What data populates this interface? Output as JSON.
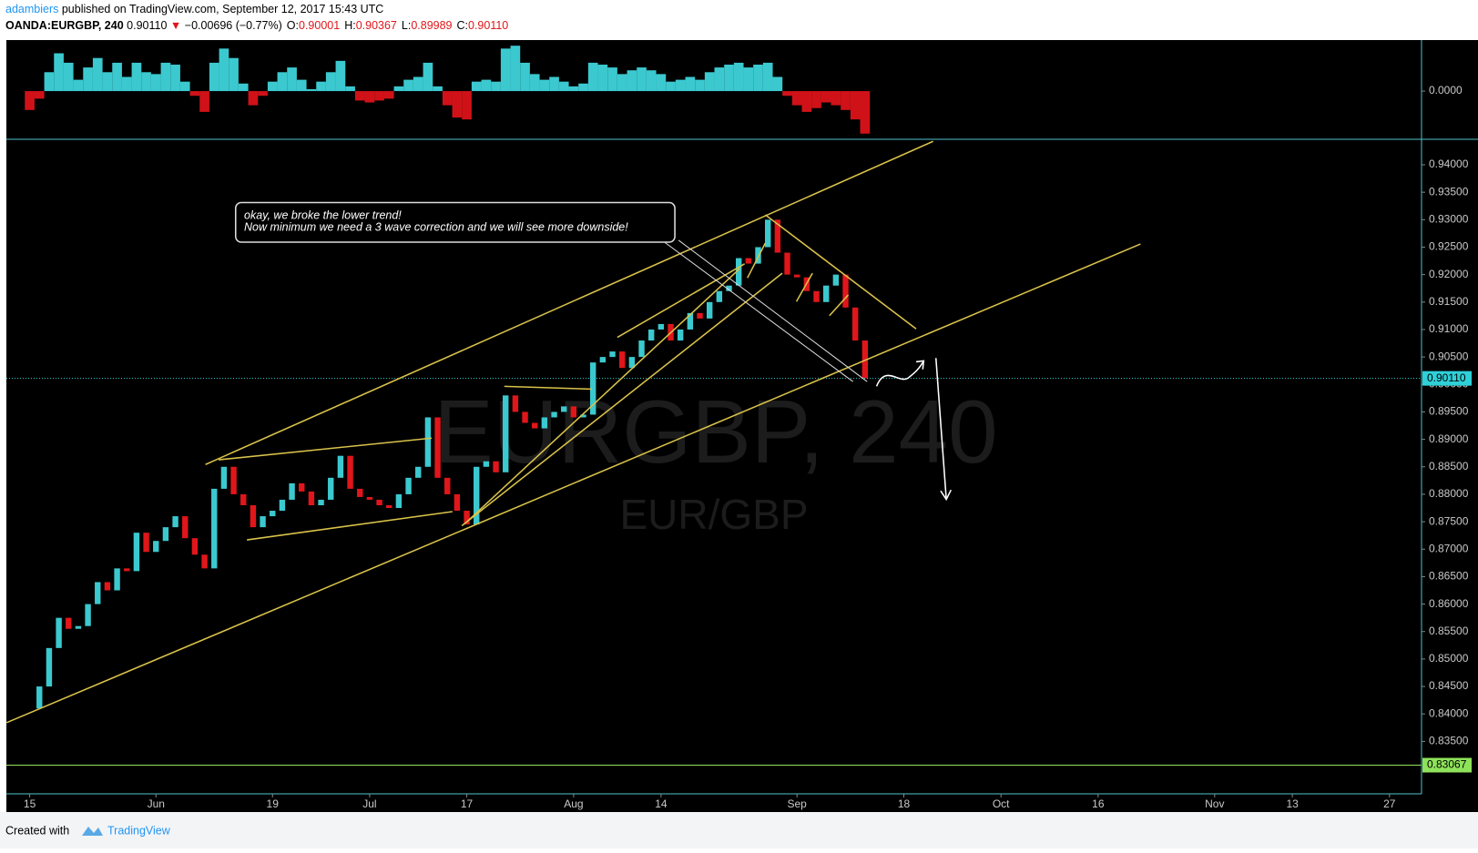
{
  "header": {
    "author": "adambiers",
    "published": "published on TradingView.com, September 12, 2017 15:43 UTC",
    "symbol": "OANDA:EURGBP, 240",
    "last": "0.90110",
    "change_arrow": "▼",
    "change": "−0.00696 (−0.77%)",
    "ohlc": [
      {
        "label": "O:",
        "value": "0.90001"
      },
      {
        "label": "H:",
        "value": "0.90367"
      },
      {
        "label": "L:",
        "value": "0.89989"
      },
      {
        "label": "C:",
        "value": "0.90110"
      }
    ]
  },
  "footer": {
    "created": "Created with",
    "brand": "TradingView"
  },
  "chart_data": [
    {
      "type": "candlestick",
      "watermark": "EURGBP, 240",
      "watermark_sub": "EUR/GBP",
      "annotation": [
        "okay, we broke the lower trend!",
        "Now minimum we need a 3 wave correction and we will see more downside!"
      ],
      "values": [
        0.841,
        0.845,
        0.852,
        0.8575,
        0.8555,
        0.856,
        0.86,
        0.864,
        0.8625,
        0.8665,
        0.866,
        0.873,
        0.8695,
        0.8715,
        0.874,
        0.876,
        0.872,
        0.869,
        0.8665,
        0.881,
        0.885,
        0.88,
        0.878,
        0.874,
        0.876,
        0.877,
        0.879,
        0.882,
        0.8805,
        0.878,
        0.879,
        0.883,
        0.887,
        0.881,
        0.8795,
        0.879,
        0.878,
        0.8775,
        0.88,
        0.883,
        0.885,
        0.894,
        0.883,
        0.88,
        0.877,
        0.8745,
        0.885,
        0.886,
        0.884,
        0.898,
        0.895,
        0.893,
        0.892,
        0.894,
        0.895,
        0.896,
        0.894,
        0.8945,
        0.904,
        0.905,
        0.906,
        0.903,
        0.905,
        0.908,
        0.91,
        0.911,
        0.908,
        0.91,
        0.913,
        0.912,
        0.915,
        0.917,
        0.918,
        0.923,
        0.922,
        0.925,
        0.93,
        0.924,
        0.92,
        0.9195,
        0.917,
        0.915,
        0.918,
        0.92,
        0.914,
        0.908,
        0.9011
      ],
      "up_color": "#3bc9cf",
      "down_color": "#e0161b",
      "xlim": [
        -2.4,
        143.3
      ],
      "xticks": [
        {
          "value": 0,
          "label": "15"
        },
        {
          "value": 13,
          "label": "Jun"
        },
        {
          "value": 25,
          "label": "19"
        },
        {
          "value": 35,
          "label": "Jul"
        },
        {
          "value": 45,
          "label": "17"
        },
        {
          "value": 56,
          "label": "Aug"
        },
        {
          "value": 65,
          "label": "14"
        },
        {
          "value": 79,
          "label": "Sep"
        },
        {
          "value": 90,
          "label": "18"
        },
        {
          "value": 100,
          "label": "Oct"
        },
        {
          "value": 110,
          "label": "16"
        },
        {
          "value": 122,
          "label": "Nov"
        },
        {
          "value": 130,
          "label": "13"
        },
        {
          "value": 140,
          "label": "27"
        }
      ],
      "ylim": [
        0.82545,
        0.94464
      ],
      "yticks": [
        {
          "value": 0.835,
          "label": "0.83500"
        },
        {
          "value": 0.84,
          "label": "0.84000"
        },
        {
          "value": 0.845,
          "label": "0.84500"
        },
        {
          "value": 0.85,
          "label": "0.85000"
        },
        {
          "value": 0.855,
          "label": "0.85500"
        },
        {
          "value": 0.86,
          "label": "0.86000"
        },
        {
          "value": 0.865,
          "label": "0.86500"
        },
        {
          "value": 0.87,
          "label": "0.87000"
        },
        {
          "value": 0.875,
          "label": "0.87500"
        },
        {
          "value": 0.88,
          "label": "0.88000"
        },
        {
          "value": 0.885,
          "label": "0.88500"
        },
        {
          "value": 0.89,
          "label": "0.89000"
        },
        {
          "value": 0.895,
          "label": "0.89500"
        },
        {
          "value": 0.9,
          "label": "0.90000"
        },
        {
          "value": 0.905,
          "label": "0.90500"
        },
        {
          "value": 0.91,
          "label": "0.91000"
        },
        {
          "value": 0.915,
          "label": "0.91500"
        },
        {
          "value": 0.92,
          "label": "0.92000"
        },
        {
          "value": 0.925,
          "label": "0.92500"
        },
        {
          "value": 0.93,
          "label": "0.93000"
        },
        {
          "value": 0.935,
          "label": "0.93500"
        },
        {
          "value": 0.94,
          "label": "0.94000"
        }
      ],
      "hlines": [
        {
          "value": 0.9011,
          "label": "0.90110",
          "color": "#2fd0d8"
        },
        {
          "value": 0.83067,
          "label": "0.83067",
          "color": "#8fe35a"
        }
      ]
    },
    {
      "type": "column",
      "values": [
        -0.002,
        -0.0008,
        0.002,
        0.004,
        0.003,
        0.0012,
        0.0025,
        0.0035,
        0.002,
        0.003,
        0.0015,
        0.003,
        0.002,
        0.0018,
        0.003,
        0.0028,
        0.001,
        -0.0005,
        -0.0022,
        0.003,
        0.0045,
        0.0035,
        0.0008,
        -0.0015,
        -0.0005,
        0.001,
        0.002,
        0.0025,
        0.0012,
        0.0002,
        0.001,
        0.002,
        0.0032,
        0.0005,
        -0.001,
        -0.0012,
        -0.001,
        -0.0008,
        0.0005,
        0.0012,
        0.0015,
        0.003,
        0.0005,
        -0.0015,
        -0.0028,
        -0.003,
        0.001,
        0.0012,
        0.001,
        0.0045,
        0.0048,
        0.003,
        0.0018,
        0.0012,
        0.0015,
        0.001,
        0.0005,
        0.0008,
        0.003,
        0.0028,
        0.0025,
        0.0018,
        0.0022,
        0.0025,
        0.0022,
        0.0018,
        0.001,
        0.0012,
        0.0015,
        0.0012,
        0.002,
        0.0025,
        0.0028,
        0.003,
        0.0025,
        0.0028,
        0.003,
        0.0015,
        -0.0005,
        -0.0015,
        -0.0022,
        -0.0018,
        -0.0012,
        -0.0015,
        -0.002,
        -0.003,
        -0.0045
      ],
      "up_color": "#3bc9cf",
      "down_color": "#d01218",
      "ylim": [
        -0.0051,
        0.0054
      ],
      "yticks": [
        {
          "value": 0,
          "label": "0.0000"
        }
      ]
    }
  ]
}
